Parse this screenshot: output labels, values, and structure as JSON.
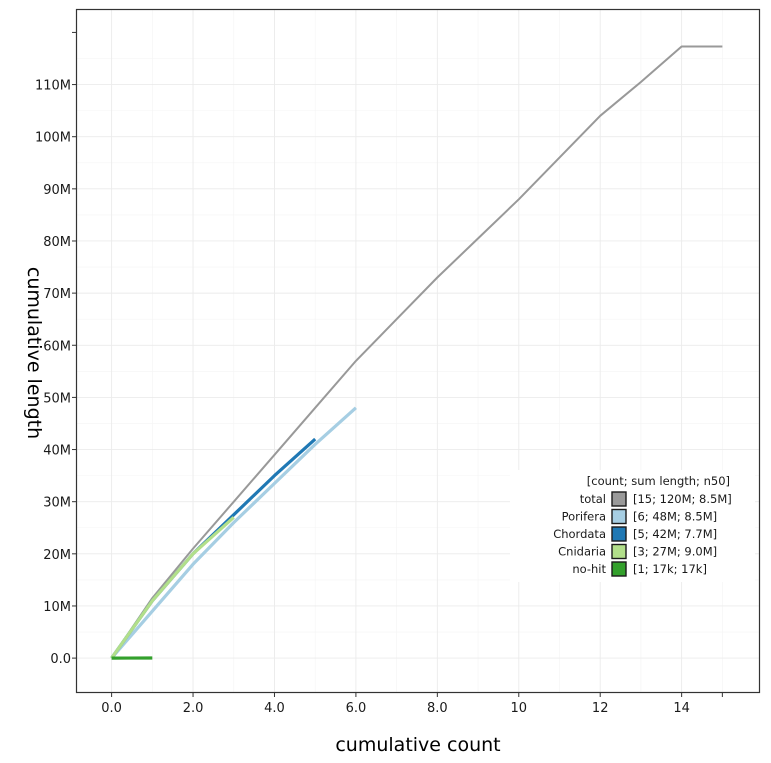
{
  "chart_data": {
    "type": "line",
    "xlabel": "cumulative count",
    "ylabel": "cumulative length",
    "xlim": [
      -0.85,
      15.9
    ],
    "ylim": [
      -6.5,
      124.3
    ],
    "x_ticks": [
      0,
      2,
      4,
      6,
      8,
      10,
      12,
      14
    ],
    "x_tick_labels": [
      "0.0",
      "2.0",
      "4.0",
      "6.0",
      "8.0",
      "10",
      "12",
      "14"
    ],
    "y_ticks": [
      0,
      10,
      20,
      30,
      40,
      50,
      60,
      70,
      80,
      90,
      100,
      110
    ],
    "y_tick_labels": [
      "0.0",
      "10M",
      "20M",
      "30M",
      "40M",
      "50M",
      "60M",
      "70M",
      "80M",
      "90M",
      "100M",
      "110M"
    ],
    "y_unit": "M",
    "grid": true,
    "legend_title": "[count; sum length; n50]",
    "legend_position": "bottom-right",
    "series": [
      {
        "name": "total",
        "summary": "[15; 120M; 8.5M]",
        "color": "#999999",
        "x": [
          0,
          1,
          2,
          3,
          4,
          5,
          6,
          7,
          8,
          9,
          10,
          11,
          12,
          13,
          14,
          15
        ],
        "y": [
          0,
          11.5,
          21.0,
          30.0,
          39.0,
          48.0,
          57.0,
          65.0,
          73.0,
          80.5,
          88.0,
          96.0,
          104.0,
          110.5,
          117.3,
          117.3
        ]
      },
      {
        "name": "Porifera",
        "summary": "[6; 48M; 8.5M]",
        "color": "#a6cee3",
        "x": [
          0,
          1,
          2,
          3,
          4,
          5,
          6
        ],
        "y": [
          0,
          9.0,
          18.0,
          26.0,
          33.5,
          41.0,
          48.0
        ]
      },
      {
        "name": "Chordata",
        "summary": "[5; 42M; 7.7M]",
        "color": "#1f78b4",
        "x": [
          0,
          1,
          2,
          3,
          4,
          5
        ],
        "y": [
          0,
          11.0,
          20.0,
          27.5,
          35.0,
          42.0
        ]
      },
      {
        "name": "Cnidaria",
        "summary": "[3; 27M; 9.0M]",
        "color": "#b2df8a",
        "x": [
          0,
          1,
          2,
          3
        ],
        "y": [
          0,
          11.0,
          20.0,
          27.0
        ]
      },
      {
        "name": "no-hit",
        "summary": "[1; 17k; 17k]",
        "color": "#33a02c",
        "x": [
          0,
          1
        ],
        "y": [
          0,
          0.017
        ]
      }
    ]
  }
}
